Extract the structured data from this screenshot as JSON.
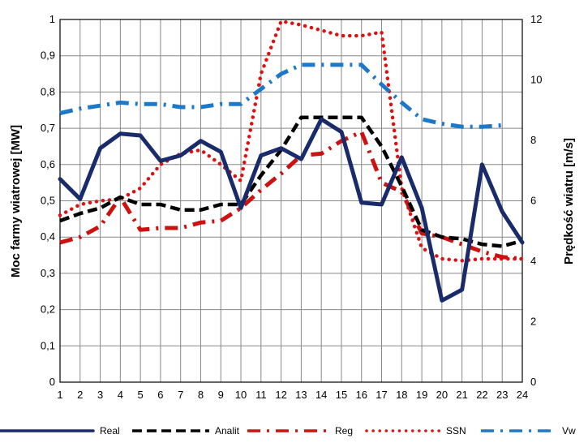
{
  "chart_data": {
    "type": "line",
    "x": [
      1,
      2,
      3,
      4,
      5,
      6,
      7,
      8,
      9,
      10,
      11,
      12,
      13,
      14,
      15,
      16,
      17,
      18,
      19,
      20,
      21,
      22,
      23,
      24
    ],
    "x_ticks": [
      "1",
      "2",
      "3",
      "4",
      "5",
      "6",
      "7",
      "8",
      "9",
      "10",
      "11",
      "12",
      "13",
      "14",
      "15",
      "16",
      "17",
      "18",
      "19",
      "20",
      "21",
      "22",
      "23",
      "24"
    ],
    "ylabel": "Moc farmy wiatrowej [MW]",
    "ylabel_right": "Prędkość wiatru [m/s]",
    "ylim": [
      0,
      1
    ],
    "ylim_right": [
      0,
      12
    ],
    "y_ticks": [
      "0",
      "0,1",
      "0,2",
      "0,3",
      "0,4",
      "0,5",
      "0,6",
      "0,7",
      "0,8",
      "0,9",
      "1"
    ],
    "y_ticks_right": [
      "0",
      "2",
      "4",
      "6",
      "8",
      "10",
      "12"
    ],
    "grid": true,
    "legend_position": "bottom",
    "series": [
      {
        "name": "Real",
        "axis": "left",
        "style": "solid",
        "color": "#1a2b6b",
        "points": [
          [
            1,
            0.56
          ],
          [
            2,
            0.505
          ],
          [
            3,
            0.645
          ],
          [
            4,
            0.685
          ],
          [
            5,
            0.68
          ],
          [
            6,
            0.61
          ],
          [
            7,
            0.625
          ],
          [
            8,
            0.665
          ],
          [
            9,
            0.635
          ],
          [
            10,
            0.48
          ],
          [
            11,
            0.625
          ],
          [
            12,
            0.645
          ],
          [
            13,
            0.615
          ],
          [
            14,
            0.725
          ],
          [
            15,
            0.69
          ],
          [
            16,
            0.495
          ],
          [
            17,
            0.49
          ],
          [
            18,
            0.62
          ],
          [
            19,
            0.48
          ],
          [
            20,
            0.225
          ],
          [
            21,
            0.255
          ],
          [
            22,
            0.6
          ],
          [
            23,
            0.47
          ],
          [
            24,
            0.385
          ]
        ]
      },
      {
        "name": "Analit",
        "axis": "left",
        "style": "dash",
        "color": "#000000",
        "points": [
          [
            1,
            0.445
          ],
          [
            2,
            0.465
          ],
          [
            3,
            0.48
          ],
          [
            4,
            0.51
          ],
          [
            5,
            0.49
          ],
          [
            6,
            0.49
          ],
          [
            7,
            0.475
          ],
          [
            8,
            0.475
          ],
          [
            9,
            0.49
          ],
          [
            10,
            0.49
          ],
          [
            11,
            0.57
          ],
          [
            12,
            0.64
          ],
          [
            13,
            0.73
          ],
          [
            14,
            0.73
          ],
          [
            15,
            0.73
          ],
          [
            16,
            0.73
          ],
          [
            17,
            0.65
          ],
          [
            18,
            0.54
          ],
          [
            19,
            0.42
          ],
          [
            20,
            0.4
          ],
          [
            21,
            0.395
          ],
          [
            22,
            0.38
          ],
          [
            23,
            0.375
          ],
          [
            24,
            0.39
          ]
        ]
      },
      {
        "name": "Reg",
        "axis": "left",
        "style": "dashdot",
        "color": "#cc1111",
        "points": [
          [
            1,
            0.385
          ],
          [
            2,
            0.4
          ],
          [
            3,
            0.43
          ],
          [
            4,
            0.51
          ],
          [
            5,
            0.42
          ],
          [
            6,
            0.425
          ],
          [
            7,
            0.425
          ],
          [
            8,
            0.44
          ],
          [
            9,
            0.445
          ],
          [
            10,
            0.48
          ],
          [
            11,
            0.53
          ],
          [
            12,
            0.575
          ],
          [
            13,
            0.625
          ],
          [
            14,
            0.63
          ],
          [
            15,
            0.665
          ],
          [
            16,
            0.69
          ],
          [
            17,
            0.55
          ],
          [
            18,
            0.525
          ],
          [
            19,
            0.41
          ],
          [
            20,
            0.4
          ],
          [
            21,
            0.38
          ],
          [
            22,
            0.36
          ],
          [
            23,
            0.345
          ],
          [
            24,
            0.34
          ]
        ]
      },
      {
        "name": "SSN",
        "axis": "left",
        "style": "dotted",
        "color": "#dd1111",
        "points": [
          [
            1,
            0.46
          ],
          [
            2,
            0.49
          ],
          [
            3,
            0.5
          ],
          [
            4,
            0.505
          ],
          [
            5,
            0.535
          ],
          [
            6,
            0.6
          ],
          [
            7,
            0.63
          ],
          [
            8,
            0.64
          ],
          [
            9,
            0.6
          ],
          [
            10,
            0.555
          ],
          [
            11,
            0.85
          ],
          [
            12,
            0.995
          ],
          [
            13,
            0.985
          ],
          [
            14,
            0.97
          ],
          [
            15,
            0.955
          ],
          [
            16,
            0.955
          ],
          [
            17,
            0.965
          ],
          [
            18,
            0.535
          ],
          [
            19,
            0.37
          ],
          [
            20,
            0.34
          ],
          [
            21,
            0.335
          ],
          [
            22,
            0.34
          ],
          [
            23,
            0.34
          ],
          [
            24,
            0.34
          ]
        ]
      },
      {
        "name": "Vw",
        "axis": "right",
        "style": "dashdot",
        "color": "#1e78c8",
        "points": [
          [
            1,
            8.9
          ],
          [
            2,
            9.05
          ],
          [
            3,
            9.15
          ],
          [
            4,
            9.25
          ],
          [
            5,
            9.2
          ],
          [
            6,
            9.2
          ],
          [
            7,
            9.1
          ],
          [
            8,
            9.1
          ],
          [
            9,
            9.2
          ],
          [
            10,
            9.2
          ],
          [
            11,
            9.7
          ],
          [
            12,
            10.2
          ],
          [
            13,
            10.5
          ],
          [
            14,
            10.5
          ],
          [
            15,
            10.5
          ],
          [
            16,
            10.5
          ],
          [
            17,
            9.85
          ],
          [
            18,
            9.25
          ],
          [
            19,
            8.7
          ],
          [
            20,
            8.55
          ],
          [
            21,
            8.45
          ],
          [
            22,
            8.45
          ],
          [
            23,
            8.5
          ]
        ]
      }
    ],
    "colors": {
      "grid": "#888888",
      "axis": "#000000"
    }
  }
}
